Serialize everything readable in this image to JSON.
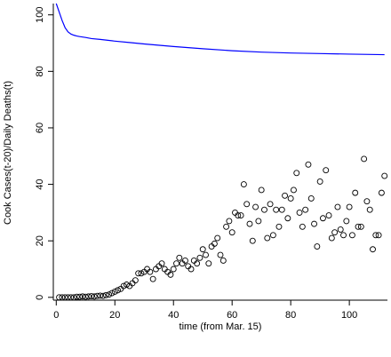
{
  "chart_data": {
    "type": "scatter",
    "xlabel": "time (from Mar. 15)",
    "ylabel": "Cook Cases(t-20)/Daily Deaths(t)",
    "xlim": [
      -1,
      113
    ],
    "ylim": [
      -1,
      104
    ],
    "x_ticks": [
      0,
      20,
      40,
      60,
      80,
      100
    ],
    "y_ticks": [
      0,
      20,
      40,
      60,
      80,
      100
    ],
    "grid": false,
    "box": "open-top-right",
    "point_color": "#000000",
    "line_color": "#0000ff",
    "series": [
      {
        "kind": "points",
        "x": [
          1,
          2,
          3,
          4,
          5,
          6,
          7,
          8,
          9,
          10,
          11,
          12,
          13,
          14,
          15,
          16,
          17,
          18,
          19,
          20,
          21,
          22,
          23,
          24,
          25,
          26,
          27,
          28,
          29,
          30,
          31,
          32,
          33,
          34,
          35,
          36,
          37,
          38,
          39,
          40,
          41,
          42,
          43,
          44,
          45,
          46,
          47,
          48,
          49,
          50,
          51,
          52,
          53,
          54,
          55,
          56,
          57,
          58,
          59,
          60,
          61,
          62,
          63,
          64,
          65,
          66,
          67,
          68,
          69,
          70,
          71,
          72,
          73,
          74,
          75,
          76,
          77,
          78,
          79,
          80,
          81,
          82,
          83,
          84,
          85,
          86,
          87,
          88,
          89,
          90,
          91,
          92,
          93,
          94,
          95,
          96,
          97,
          98,
          99,
          100,
          101,
          102,
          103,
          104,
          105,
          106,
          107,
          108,
          109,
          110,
          111,
          112
        ],
        "y": [
          0,
          0,
          0,
          0,
          0,
          0,
          0.2,
          0.2,
          0.3,
          0.2,
          0.3,
          0.4,
          0.3,
          0.5,
          0.6,
          0.5,
          0.8,
          1.0,
          1.5,
          2,
          2.5,
          3,
          4,
          4.5,
          4,
          5,
          6,
          8.5,
          8.5,
          9,
          10,
          9,
          6.5,
          10,
          11,
          12,
          10,
          9,
          8,
          10,
          12,
          14,
          12,
          13,
          11,
          10,
          13,
          12,
          14,
          17,
          15,
          12,
          18,
          19,
          21,
          15,
          13,
          25,
          27,
          23,
          30,
          29,
          29,
          40,
          33,
          26,
          20,
          32,
          27,
          38,
          31,
          21,
          33,
          22,
          31,
          25,
          31,
          36,
          28,
          35,
          38,
          44,
          30,
          25,
          31,
          47,
          35,
          26,
          18,
          41,
          28,
          45,
          29,
          21,
          23,
          32,
          24,
          22,
          27,
          32,
          22,
          37,
          25,
          25,
          49,
          34,
          31,
          17,
          22,
          22,
          37,
          43
        ]
      },
      {
        "kind": "line",
        "x": [
          0,
          1,
          2,
          3,
          4,
          5,
          6,
          7,
          8,
          10,
          12,
          15,
          20,
          25,
          30,
          40,
          50,
          60,
          70,
          80,
          90,
          100,
          112
        ],
        "y": [
          104,
          101,
          98,
          95.5,
          94,
          93.2,
          92.8,
          92.5,
          92.3,
          92.0,
          91.6,
          91.3,
          90.7,
          90.2,
          89.7,
          88.8,
          88.0,
          87.3,
          86.8,
          86.5,
          86.3,
          86.1,
          85.9
        ]
      }
    ]
  }
}
